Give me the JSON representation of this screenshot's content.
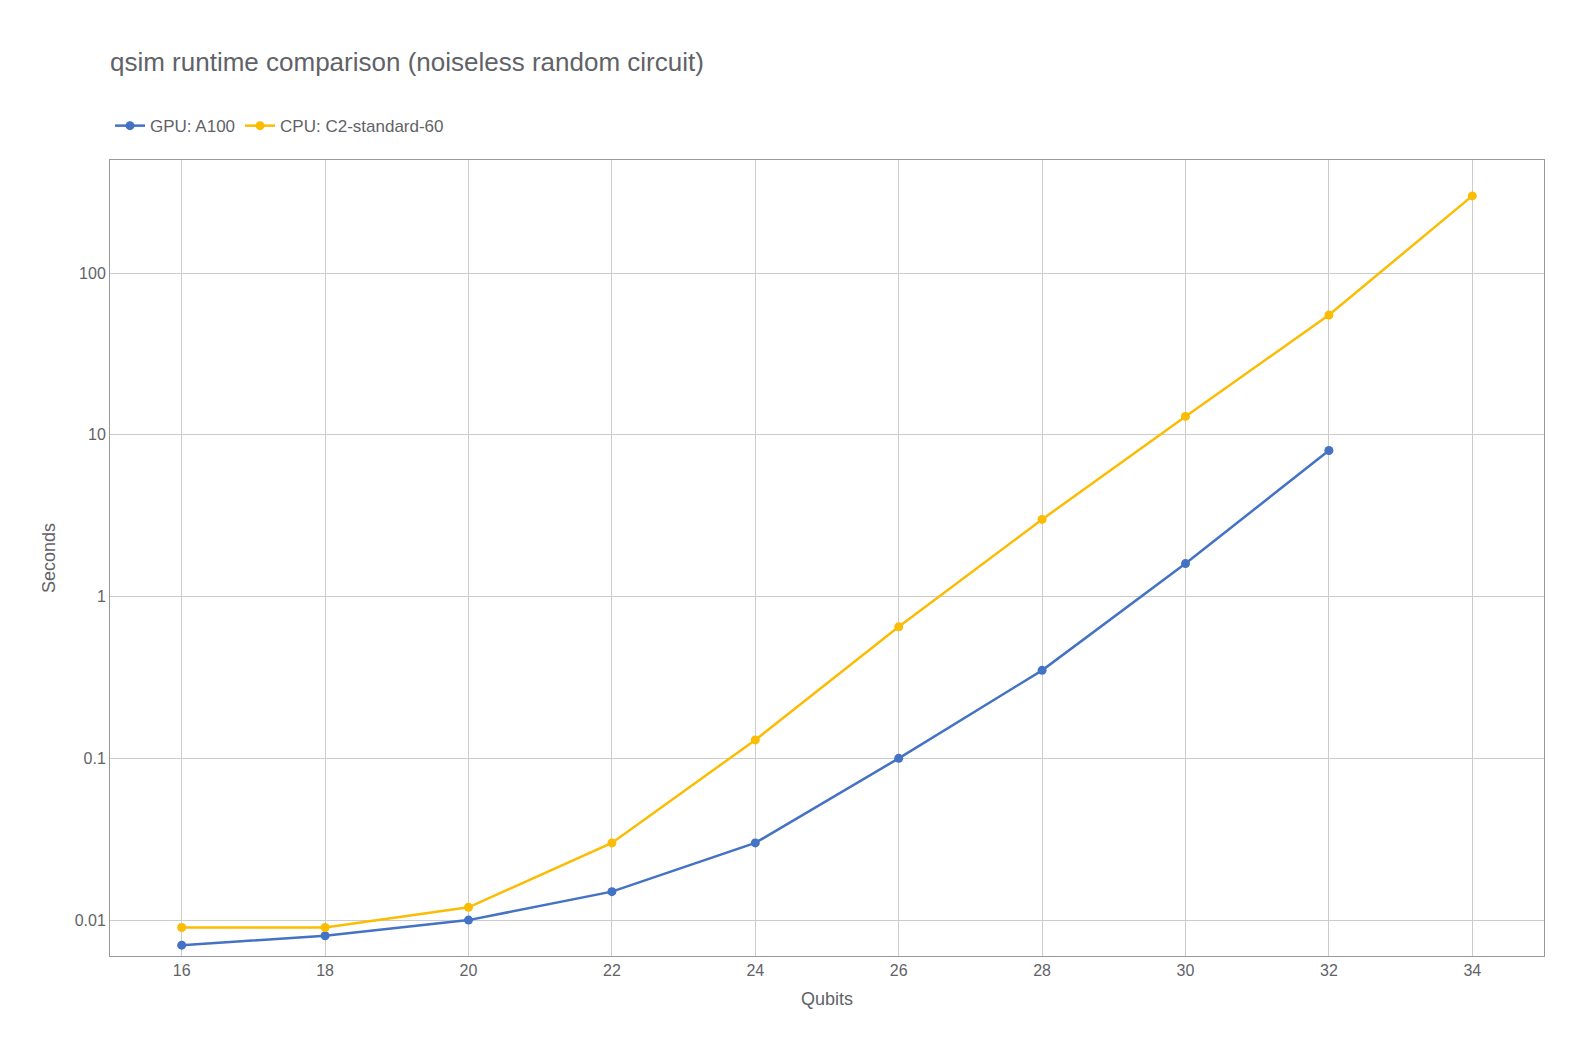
{
  "chart_data": {
    "type": "line",
    "title": "qsim runtime comparison (noiseless random circuit)",
    "x_label": "Qubits",
    "y_label": "Seconds",
    "x": [
      16,
      18,
      20,
      22,
      24,
      26,
      28,
      30,
      32,
      34
    ],
    "series": [
      {
        "name": "GPU: A100",
        "color": "#4472C4",
        "values": [
          0.007,
          0.008,
          0.01,
          0.015,
          0.03,
          0.1,
          0.35,
          1.6,
          8.0,
          null
        ]
      },
      {
        "name": "CPU: C2-standard-60",
        "color": "#FBBC04",
        "values": [
          0.009,
          0.009,
          0.012,
          0.03,
          0.13,
          0.65,
          3.0,
          13.0,
          55.0,
          300.0
        ]
      }
    ],
    "xlim": [
      15,
      35
    ],
    "xticks": [
      16,
      18,
      20,
      22,
      24,
      26,
      28,
      30,
      32,
      34
    ],
    "ylim": [
      0.006,
      500
    ],
    "yticks": [
      0.01,
      0.1,
      1,
      10,
      100
    ],
    "log": "y",
    "grid": true,
    "legend": "upper left",
    "marker": "circle",
    "line_style": "solid"
  }
}
